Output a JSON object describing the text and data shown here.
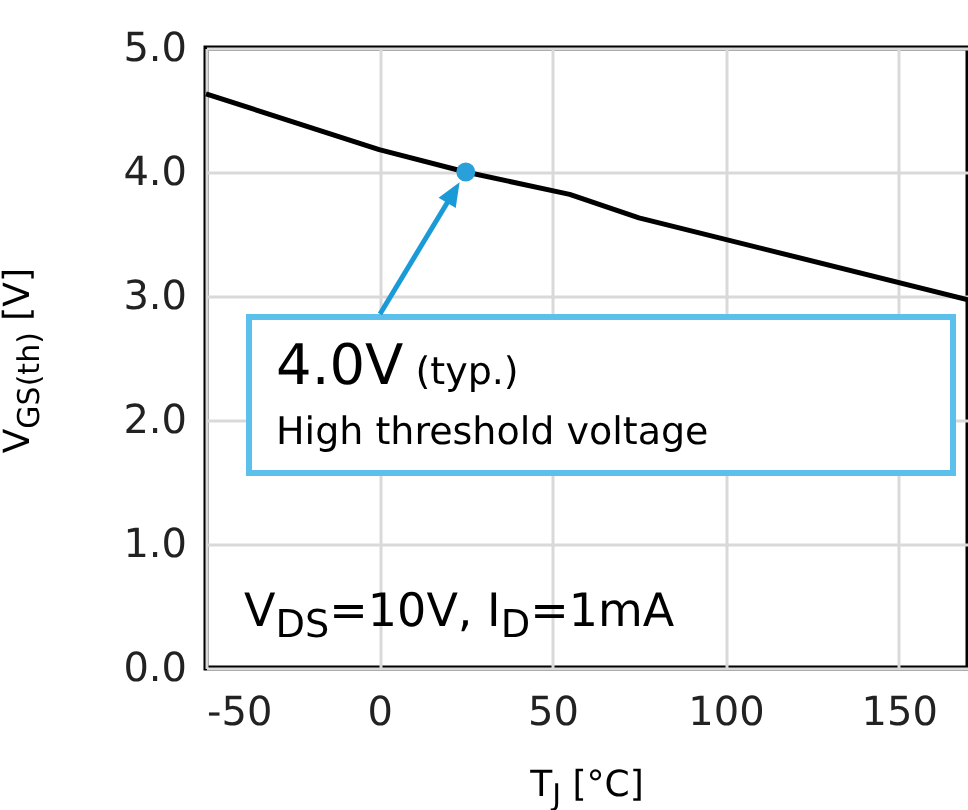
{
  "chart_data": {
    "type": "line",
    "xlabel": "T$_{J}$ [°C]",
    "ylabel": "V$_{GS(th)}$ [V]",
    "xlim": [
      -50,
      170
    ],
    "ylim": [
      0,
      5
    ],
    "xticks": [
      -50,
      0,
      50,
      100,
      150
    ],
    "yticks": [
      {
        "value": 0,
        "label": "0.0"
      },
      {
        "value": 1,
        "label": "1.0"
      },
      {
        "value": 2,
        "label": "2.0"
      },
      {
        "value": 3,
        "label": "3.0"
      },
      {
        "value": 4,
        "label": "4.0"
      },
      {
        "value": 5,
        "label": "5.0"
      }
    ],
    "grid": true,
    "series": [
      {
        "color": "#000000",
        "x": [
          -50,
          0,
          25,
          55,
          75,
          170
        ],
        "values": [
          4.63,
          4.18,
          4.0,
          3.82,
          3.63,
          2.97
        ]
      },
      {
        "type": "scatter",
        "color": "#29a0da",
        "marker": "circle",
        "x": [
          25
        ],
        "values": [
          4.0
        ]
      }
    ],
    "annotations": [
      {
        "text": "4.0V (typ.)",
        "x": 25,
        "y": 4.0
      },
      "High threshold voltage",
      "V$_{DS}$=10V, I$_{D}$=1mA"
    ]
  }
}
